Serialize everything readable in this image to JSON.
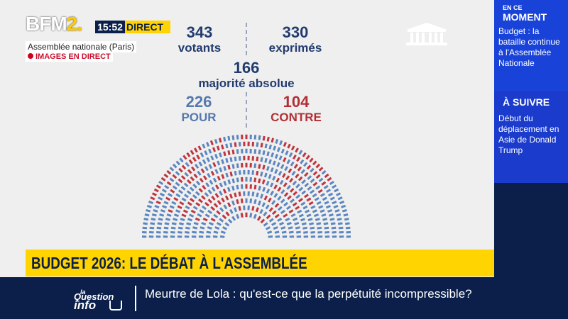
{
  "channel": {
    "logo": {
      "text": "BFM",
      "number": "2."
    },
    "time": "15:52",
    "live_label": "DIRECT",
    "location": "Assemblée nationale (Paris)",
    "images_label": "IMAGES EN DIRECT"
  },
  "vote": {
    "votants": {
      "value": "343",
      "label": "votants"
    },
    "exprimes": {
      "value": "330",
      "label": "exprimés"
    },
    "majorite": {
      "value": "166",
      "label": "majorité absolue"
    },
    "pour": {
      "value": "226",
      "label": "POUR"
    },
    "contre": {
      "value": "104",
      "label": "CONTRE"
    }
  },
  "hemicycle": {
    "pour_color": "#5b86bf",
    "contre_color": "#c0353d",
    "pour_count": 226,
    "contre_count": 104
  },
  "banner": {
    "title": "BUDGET 2026: LE DÉBAT À L'ASSEMBLÉE"
  },
  "sidebar": {
    "now_small": "EN CE",
    "now_big": "MOMENT",
    "now_text": "Budget : la bataille continue à l'Assemblée Nationale",
    "next_label": "À SUIVRE",
    "next_text": "Début du déplacement en Asie de Donald Trump"
  },
  "ticker": {
    "show_logo": {
      "small": "la",
      "mid": "Question",
      "big": "info"
    },
    "text": "Meurtre de Lola : qu'est-ce que la perpétuité incompressible?"
  },
  "colors": {
    "navy": "#0b1f4a",
    "yellow": "#ffd400",
    "blue_panel": "#1943d8"
  }
}
